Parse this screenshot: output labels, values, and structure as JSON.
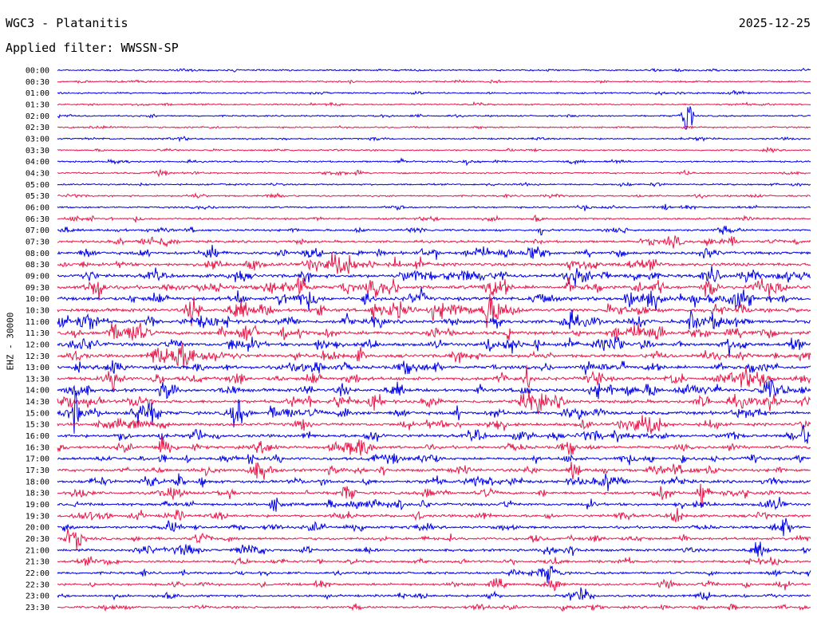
{
  "header": {
    "station": "WGC3 - Platanitis",
    "date": "2025-12-25",
    "filter_label": "Applied filter:",
    "filter": "WWSSN-SP"
  },
  "chart_data": {
    "type": "line",
    "ylabel": "EHZ - 30000",
    "traces": [
      "00:00",
      "00:30",
      "01:00",
      "01:30",
      "02:00",
      "02:30",
      "03:00",
      "03:30",
      "04:00",
      "04:30",
      "05:00",
      "05:30",
      "06:00",
      "06:30",
      "07:00",
      "07:30",
      "08:00",
      "08:30",
      "09:00",
      "09:30",
      "10:00",
      "10:30",
      "11:00",
      "11:30",
      "12:00",
      "12:30",
      "13:00",
      "13:30",
      "14:00",
      "14:30",
      "15:00",
      "15:30",
      "16:00",
      "16:30",
      "17:00",
      "17:30",
      "18:00",
      "18:30",
      "19:00",
      "19:30",
      "20:00",
      "20:30",
      "21:00",
      "21:30",
      "22:00",
      "22:30",
      "23:00",
      "23:30"
    ],
    "colors": [
      "#0000e6",
      "#e6194b"
    ],
    "noise_level": [
      0.6,
      0.6,
      0.6,
      0.6,
      0.6,
      0.6,
      0.6,
      0.6,
      0.7,
      0.7,
      0.7,
      0.7,
      0.8,
      1.0,
      1.3,
      1.6,
      2.2,
      2.6,
      2.8,
      3.0,
      3.0,
      3.0,
      2.9,
      2.8,
      2.7,
      2.6,
      2.7,
      2.8,
      2.6,
      2.6,
      2.6,
      2.4,
      2.4,
      2.3,
      2.2,
      2.2,
      2.2,
      2.0,
      2.0,
      1.9,
      1.8,
      1.8,
      1.7,
      1.6,
      1.6,
      1.6,
      1.5,
      1.5
    ]
  }
}
